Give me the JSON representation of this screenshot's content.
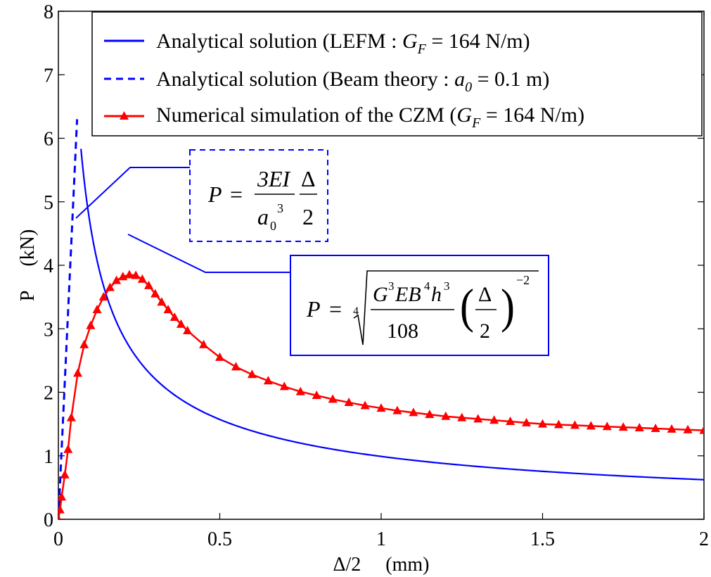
{
  "chart_data": {
    "type": "line",
    "xlabel": "Δ/2     (mm)",
    "ylabel": "P     (kN)",
    "xlim": [
      0,
      2
    ],
    "ylim": [
      0,
      8
    ],
    "xticks": [
      0,
      0.5,
      1,
      1.5,
      2
    ],
    "xtick_labels": [
      "0",
      "0.5",
      "1",
      "1.5",
      "2"
    ],
    "yticks": [
      0,
      1,
      2,
      3,
      4,
      5,
      6,
      7,
      8
    ],
    "ytick_labels": [
      "0",
      "1",
      "2",
      "3",
      "4",
      "5",
      "6",
      "7",
      "8"
    ],
    "grid": false,
    "legend_position": "top-right",
    "series": [
      {
        "name": "Analytical solution (LEFM : G_F = 164 N/m)",
        "legend_main": "Analytical solution (LEFM : ",
        "legend_sym": "G",
        "legend_sub": "F",
        "legend_tail": " = 164 N/m)",
        "color": "#0000ff",
        "style": "solid",
        "model": {
          "form": "power",
          "coef": 0.99,
          "exponent": -0.667,
          "x_start": 0.07,
          "x_end": 2.0
        }
      },
      {
        "name": "Analytical solution (Beam theory : a_0 = 0.1 m)",
        "legend_main": "Analytical solution (Beam theory : ",
        "legend_sym": "a",
        "legend_sub": "0",
        "legend_tail": " = 0.1 m)",
        "color": "#0000ff",
        "style": "dashed",
        "x": [
          0,
          0.058
        ],
        "y": [
          0,
          6.3
        ]
      },
      {
        "name": "Numerical simulation of the CZM (G_F = 164 N/m)",
        "legend_main": "Numerical simulation of the CZM (",
        "legend_sym": "G",
        "legend_sub": "F",
        "legend_tail": " = 164 N/m)",
        "color": "#ff0000",
        "style": "solid",
        "marker": "triangle",
        "x": [
          0,
          0.005,
          0.01,
          0.02,
          0.03,
          0.04,
          0.06,
          0.08,
          0.1,
          0.12,
          0.14,
          0.16,
          0.18,
          0.2,
          0.22,
          0.24,
          0.26,
          0.28,
          0.3,
          0.32,
          0.34,
          0.36,
          0.38,
          0.4,
          0.45,
          0.5,
          0.55,
          0.6,
          0.65,
          0.7,
          0.75,
          0.8,
          0.85,
          0.9,
          0.95,
          1.0,
          1.05,
          1.1,
          1.15,
          1.2,
          1.25,
          1.3,
          1.35,
          1.4,
          1.45,
          1.5,
          1.55,
          1.6,
          1.65,
          1.7,
          1.75,
          1.8,
          1.85,
          1.9,
          1.95,
          2.0
        ],
        "y": [
          0,
          0.15,
          0.35,
          0.7,
          1.1,
          1.6,
          2.3,
          2.75,
          3.05,
          3.3,
          3.5,
          3.65,
          3.76,
          3.82,
          3.85,
          3.84,
          3.78,
          3.68,
          3.55,
          3.42,
          3.3,
          3.18,
          3.07,
          2.97,
          2.75,
          2.55,
          2.4,
          2.28,
          2.18,
          2.09,
          2.01,
          1.95,
          1.89,
          1.84,
          1.79,
          1.75,
          1.71,
          1.68,
          1.65,
          1.62,
          1.6,
          1.58,
          1.56,
          1.54,
          1.52,
          1.5,
          1.49,
          1.48,
          1.47,
          1.46,
          1.45,
          1.44,
          1.43,
          1.42,
          1.41,
          1.4
        ]
      }
    ],
    "annotations": [
      {
        "id": "beam",
        "formula": "P = 3EI/(a_0^3) · Δ/2",
        "box_style": "dashed",
        "color": "#0000ff"
      },
      {
        "id": "lefm",
        "formula": "P = ⁴√( G³EB⁴h³/108 · (Δ/2)^−2 )",
        "box_style": "solid",
        "color": "#0000ff"
      }
    ],
    "formula_parts": {
      "P": "P",
      "eq": "=",
      "num_3EI": "3EI",
      "den_a": "a",
      "den_sub": "0",
      "den_sup": "3",
      "delta": "Δ",
      "two": "2",
      "root_idx": "4",
      "G": "G",
      "sup3": "3",
      "EB": "EB",
      "sup4": "4",
      "h": "h",
      "n108": "108",
      "exp_neg2": "−2"
    }
  }
}
